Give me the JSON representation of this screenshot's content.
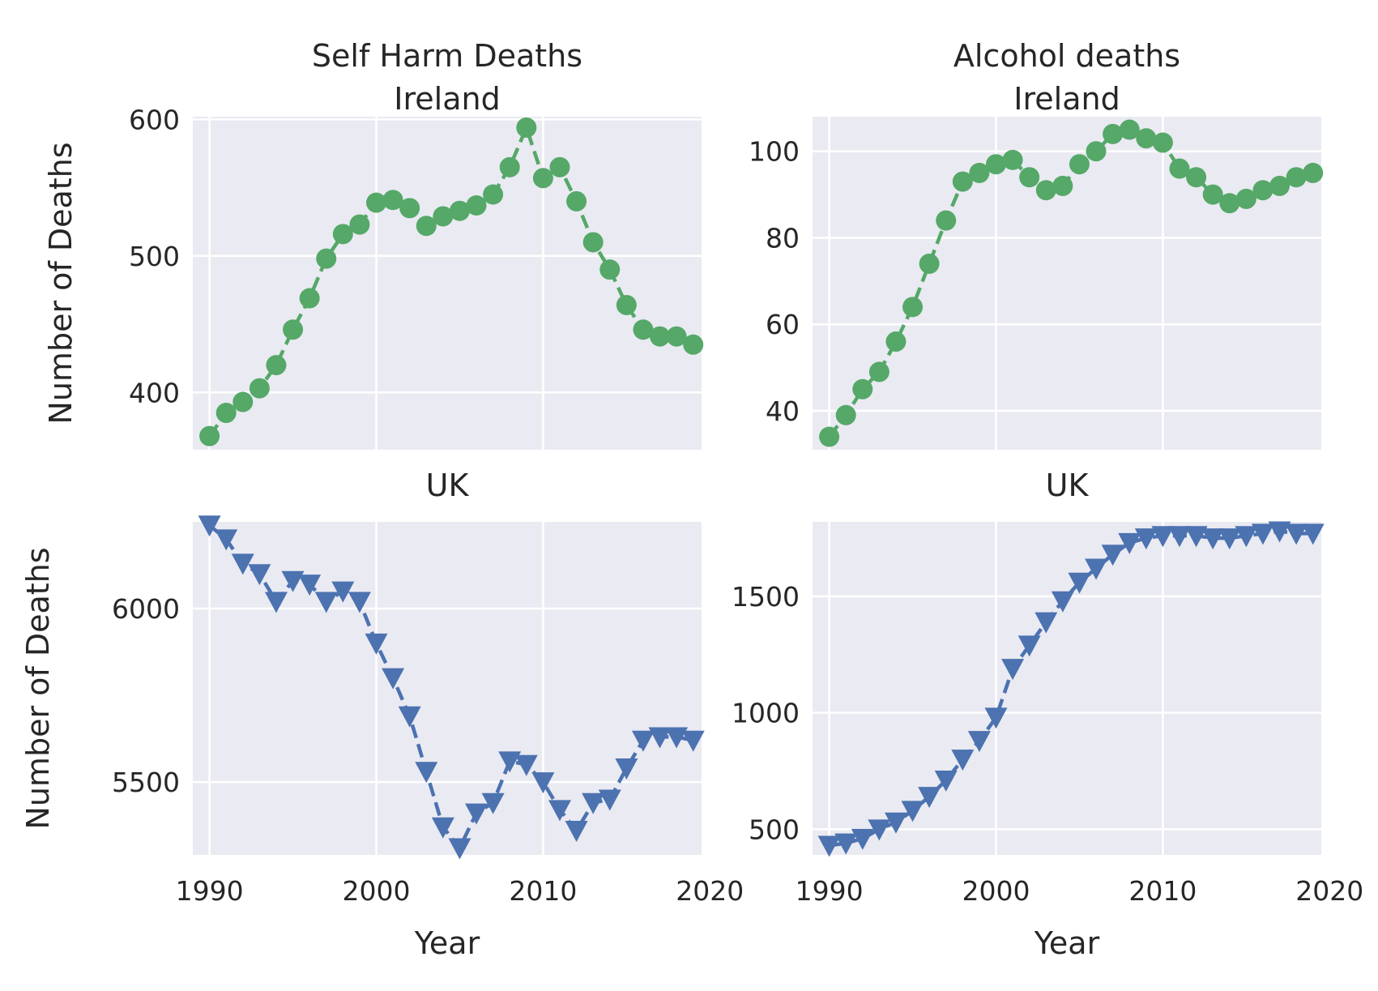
{
  "chart_data": [
    {
      "type": "line",
      "panel": "top-left",
      "title": "Self Harm Deaths\nIreland",
      "xlabel": "",
      "ylabel": "Number of Deaths",
      "xlim": [
        1989,
        2019.5
      ],
      "ylim": [
        358,
        602
      ],
      "xticks": [],
      "yticks": [
        400,
        500,
        600
      ],
      "grid": true,
      "color": "#55a868",
      "marker": "circle",
      "linestyle": "dashed",
      "x": [
        1990,
        1991,
        1992,
        1993,
        1994,
        1995,
        1996,
        1997,
        1998,
        1999,
        2000,
        2001,
        2002,
        2003,
        2004,
        2005,
        2006,
        2007,
        2008,
        2009,
        2010,
        2011,
        2012,
        2013,
        2014,
        2015,
        2016,
        2017,
        2018,
        2019
      ],
      "values": [
        368,
        385,
        393,
        403,
        420,
        446,
        469,
        498,
        516,
        523,
        539,
        541,
        535,
        522,
        529,
        533,
        537,
        545,
        565,
        594,
        557,
        565,
        540,
        510,
        490,
        464,
        446,
        441,
        441,
        435
      ]
    },
    {
      "type": "line",
      "panel": "top-right",
      "title": "Alcohol deaths\nIreland",
      "xlabel": "",
      "ylabel": "",
      "xlim": [
        1989,
        2019.5
      ],
      "ylim": [
        31,
        108
      ],
      "xticks": [],
      "yticks": [
        40,
        60,
        80,
        100
      ],
      "grid": true,
      "color": "#55a868",
      "marker": "circle",
      "linestyle": "dashed",
      "x": [
        1990,
        1991,
        1992,
        1993,
        1994,
        1995,
        1996,
        1997,
        1998,
        1999,
        2000,
        2001,
        2002,
        2003,
        2004,
        2005,
        2006,
        2007,
        2008,
        2009,
        2010,
        2011,
        2012,
        2013,
        2014,
        2015,
        2016,
        2017,
        2018,
        2019
      ],
      "values": [
        34,
        39,
        45,
        49,
        56,
        64,
        74,
        84,
        93,
        95,
        97,
        98,
        94,
        91,
        92,
        97,
        100,
        104,
        105,
        103,
        102,
        96,
        94,
        90,
        88,
        89,
        91,
        92,
        94,
        95
      ]
    },
    {
      "type": "line",
      "panel": "bottom-left",
      "title": "UK",
      "xlabel": "Year",
      "ylabel": "Number of Deaths",
      "xlim": [
        1989,
        2019.5
      ],
      "ylim": [
        5290,
        6250
      ],
      "xticks": [
        1990,
        2000,
        2010,
        2020
      ],
      "yticks": [
        5500,
        6000
      ],
      "grid": true,
      "color": "#4c72b0",
      "marker": "triangle-down",
      "linestyle": "dashed",
      "x": [
        1990,
        1991,
        1992,
        1993,
        1994,
        1995,
        1996,
        1997,
        1998,
        1999,
        2000,
        2001,
        2002,
        2003,
        2004,
        2005,
        2006,
        2007,
        2008,
        2009,
        2010,
        2011,
        2012,
        2013,
        2014,
        2015,
        2016,
        2017,
        2018,
        2019
      ],
      "values": [
        6240,
        6200,
        6130,
        6100,
        6020,
        6080,
        6070,
        6020,
        6050,
        6020,
        5900,
        5800,
        5690,
        5530,
        5370,
        5310,
        5410,
        5440,
        5560,
        5550,
        5500,
        5420,
        5360,
        5440,
        5450,
        5540,
        5620,
        5630,
        5630,
        5620
      ]
    },
    {
      "type": "line",
      "panel": "bottom-right",
      "title": "UK",
      "xlabel": "Year",
      "ylabel": "",
      "xlim": [
        1989,
        2019.5
      ],
      "ylim": [
        390,
        1820
      ],
      "xticks": [
        1990,
        2000,
        2010,
        2020
      ],
      "yticks": [
        500,
        1000,
        1500
      ],
      "grid": true,
      "color": "#4c72b0",
      "marker": "triangle-down",
      "linestyle": "dashed",
      "x": [
        1990,
        1991,
        1992,
        1993,
        1994,
        1995,
        1996,
        1997,
        1998,
        1999,
        2000,
        2001,
        2002,
        2003,
        2004,
        2005,
        2006,
        2007,
        2008,
        2009,
        2010,
        2011,
        2012,
        2013,
        2014,
        2015,
        2016,
        2017,
        2018,
        2019
      ],
      "values": [
        430,
        440,
        460,
        500,
        530,
        580,
        640,
        710,
        800,
        880,
        980,
        1190,
        1290,
        1390,
        1480,
        1560,
        1620,
        1680,
        1730,
        1750,
        1760,
        1760,
        1760,
        1750,
        1750,
        1760,
        1770,
        1780,
        1770,
        1770
      ]
    }
  ]
}
